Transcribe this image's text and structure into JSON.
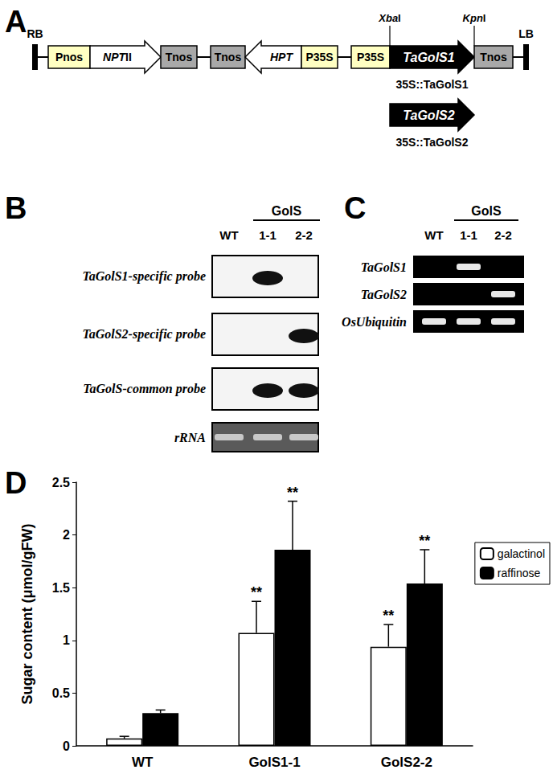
{
  "panel_labels": [
    "A",
    "B",
    "C",
    "D"
  ],
  "construct": {
    "elements": [
      {
        "label": "RB",
        "kind": "border"
      },
      {
        "label": "Pnos",
        "kind": "promoter"
      },
      {
        "label": "NPTII",
        "kind": "gene",
        "direction": "right"
      },
      {
        "label": "Tnos",
        "kind": "terminator"
      },
      {
        "label": "Tnos",
        "kind": "terminator"
      },
      {
        "label": "HPT",
        "kind": "gene",
        "direction": "left"
      },
      {
        "label": "P35S",
        "kind": "promoter"
      },
      {
        "label": "P35S",
        "kind": "promoter"
      },
      {
        "label": "TaGolS1",
        "kind": "transgene",
        "direction": "right"
      },
      {
        "label": "Tnos",
        "kind": "terminator"
      },
      {
        "label": "LB",
        "kind": "border"
      }
    ],
    "sites": [
      "XbaI",
      "KpnI"
    ],
    "constructs": [
      {
        "name": "35S::TaGolS1"
      },
      {
        "gene": "TaGolS2",
        "name": "35S::TaGolS2"
      }
    ]
  },
  "northern": {
    "group": "GolS",
    "lanes": [
      "WT",
      "1-1",
      "2-2"
    ],
    "probes": [
      {
        "label": "TaGolS1-specific probe",
        "bands": [
          "1-1"
        ]
      },
      {
        "label": "TaGolS2-specific probe",
        "bands": [
          "2-2"
        ]
      },
      {
        "label": "TaGolS-common probe",
        "bands": [
          "1-1",
          "2-2"
        ]
      }
    ],
    "rrna": {
      "label": "rRNA",
      "bands": [
        "WT",
        "1-1",
        "2-2"
      ]
    }
  },
  "rtpcr": {
    "group": "GolS",
    "lanes": [
      "WT",
      "1-1",
      "2-2"
    ],
    "genes": [
      {
        "label": "TaGolS1",
        "bands": [
          "1-1"
        ]
      },
      {
        "label": "TaGolS2",
        "bands": [
          "2-2"
        ]
      },
      {
        "label": "OsUbiquitin",
        "bands": [
          "WT",
          "1-1",
          "2-2"
        ]
      }
    ]
  },
  "chart_data": {
    "type": "bar",
    "categories": [
      "WT",
      "GolS1-1",
      "GolS2-2"
    ],
    "ylabel": "Sugar content (μmol/gFW)",
    "ylim": [
      0,
      2.5
    ],
    "yticks": [
      0,
      0.5,
      1,
      1.5,
      2,
      2.5
    ],
    "grid": false,
    "legend": "right",
    "series": [
      {
        "name": "galactinol",
        "color": "#ffffff",
        "values": [
          0.07,
          1.07,
          0.94
        ],
        "errors": [
          0.02,
          0.3,
          0.21
        ],
        "significance": [
          null,
          "**",
          "**"
        ]
      },
      {
        "name": "raffinose",
        "color": "#000000",
        "values": [
          0.31,
          1.86,
          1.54
        ],
        "errors": [
          0.03,
          0.46,
          0.32
        ],
        "significance": [
          null,
          "**",
          "**"
        ]
      }
    ]
  }
}
